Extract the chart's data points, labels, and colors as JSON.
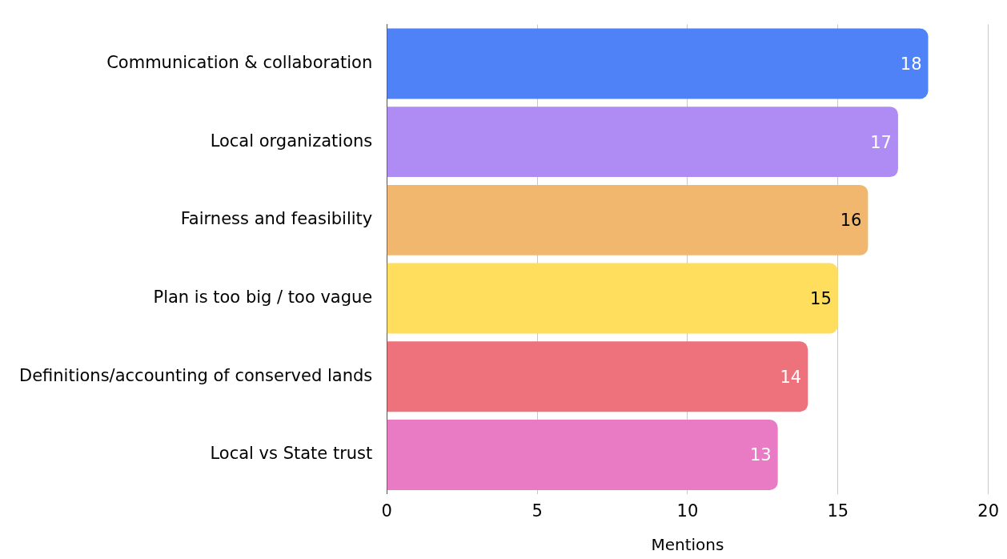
{
  "chart_data": {
    "type": "bar",
    "orientation": "horizontal",
    "categories": [
      "Communication & collaboration",
      "Local organizations",
      "Fairness and feasibility",
      "Plan is too big / too vague",
      "Definitions/accounting of conserved lands",
      "Local vs State trust"
    ],
    "values": [
      18,
      17,
      16,
      15,
      14,
      13
    ],
    "colors": [
      "#4f82f7",
      "#af8cf4",
      "#f2b76e",
      "#fede5c",
      "#ee727b",
      "#e87bc4"
    ],
    "xlabel": "Mentions",
    "xlim": [
      0,
      20
    ],
    "xticks": [
      0,
      5,
      10,
      15,
      20
    ],
    "grid": "x",
    "legend": false,
    "data_labels": true
  }
}
